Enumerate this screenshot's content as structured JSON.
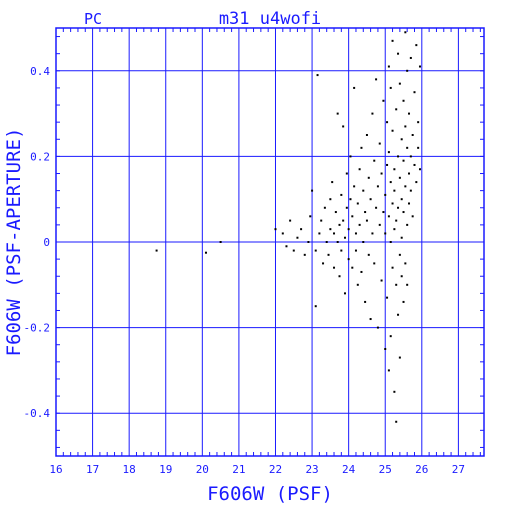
{
  "header": {
    "left_label": "PC",
    "title": "m31_u4wofi"
  },
  "colors": {
    "axis": "#1a1aff",
    "grid": "#1a1aff",
    "points": "#000000"
  },
  "chart_data": {
    "type": "scatter",
    "title": "m31_u4wofi",
    "subtitle": "PC",
    "xlabel": "F606W (PSF)",
    "ylabel": "F606W (PSF-APERTURE)",
    "xlim": [
      16,
      27.7
    ],
    "ylim": [
      -0.5,
      0.5
    ],
    "x_ticks": [
      16,
      17,
      18,
      19,
      20,
      21,
      22,
      23,
      24,
      25,
      26,
      27
    ],
    "y_ticks": [
      -0.4,
      -0.2,
      0,
      0.2,
      0.4
    ],
    "x_tick_labels": [
      "16",
      "17",
      "18",
      "19",
      "20",
      "21",
      "22",
      "23",
      "24",
      "25",
      "26",
      "27"
    ],
    "y_tick_labels": [
      "-0.4",
      "-0.2",
      "0",
      "0.2",
      "0.4"
    ],
    "grid": true,
    "points": [
      [
        18.75,
        -0.02
      ],
      [
        20.1,
        -0.025
      ],
      [
        20.5,
        0.0
      ],
      [
        22.0,
        0.03
      ],
      [
        22.2,
        0.02
      ],
      [
        22.3,
        -0.01
      ],
      [
        22.4,
        0.05
      ],
      [
        22.5,
        -0.02
      ],
      [
        22.6,
        0.01
      ],
      [
        22.7,
        0.03
      ],
      [
        22.8,
        -0.03
      ],
      [
        22.9,
        0.0
      ],
      [
        22.95,
        0.06
      ],
      [
        23.0,
        0.12
      ],
      [
        23.1,
        -0.02
      ],
      [
        23.1,
        -0.15
      ],
      [
        23.15,
        0.39
      ],
      [
        23.2,
        0.02
      ],
      [
        23.25,
        0.05
      ],
      [
        23.3,
        -0.05
      ],
      [
        23.35,
        0.08
      ],
      [
        23.4,
        0.0
      ],
      [
        23.45,
        -0.03
      ],
      [
        23.5,
        0.1
      ],
      [
        23.5,
        0.03
      ],
      [
        23.55,
        0.14
      ],
      [
        23.6,
        -0.06
      ],
      [
        23.6,
        0.02
      ],
      [
        23.65,
        0.07
      ],
      [
        23.7,
        0.0
      ],
      [
        23.7,
        0.3
      ],
      [
        23.75,
        -0.08
      ],
      [
        23.75,
        0.04
      ],
      [
        23.8,
        0.11
      ],
      [
        23.8,
        -0.02
      ],
      [
        23.85,
        0.05
      ],
      [
        23.85,
        0.27
      ],
      [
        23.9,
        0.01
      ],
      [
        23.9,
        -0.12
      ],
      [
        23.95,
        0.08
      ],
      [
        23.95,
        0.16
      ],
      [
        24.0,
        0.03
      ],
      [
        24.0,
        -0.04
      ],
      [
        24.05,
        0.2
      ],
      [
        24.05,
        0.1
      ],
      [
        24.1,
        -0.06
      ],
      [
        24.1,
        0.06
      ],
      [
        24.15,
        0.13
      ],
      [
        24.15,
        0.36
      ],
      [
        24.2,
        -0.02
      ],
      [
        24.2,
        0.02
      ],
      [
        24.25,
        0.09
      ],
      [
        24.25,
        -0.1
      ],
      [
        24.3,
        0.17
      ],
      [
        24.3,
        0.04
      ],
      [
        24.35,
        -0.07
      ],
      [
        24.35,
        0.22
      ],
      [
        24.4,
        0.0
      ],
      [
        24.4,
        0.12
      ],
      [
        24.45,
        0.07
      ],
      [
        24.45,
        -0.14
      ],
      [
        24.5,
        0.25
      ],
      [
        24.5,
        0.05
      ],
      [
        24.55,
        -0.03
      ],
      [
        24.55,
        0.15
      ],
      [
        24.6,
        0.1
      ],
      [
        24.6,
        -0.18
      ],
      [
        24.65,
        0.02
      ],
      [
        24.65,
        0.3
      ],
      [
        24.7,
        0.19
      ],
      [
        24.7,
        -0.05
      ],
      [
        24.75,
        0.08
      ],
      [
        24.75,
        0.38
      ],
      [
        24.8,
        0.13
      ],
      [
        24.8,
        -0.2
      ],
      [
        24.85,
        0.04
      ],
      [
        24.85,
        0.23
      ],
      [
        24.9,
        -0.09
      ],
      [
        24.9,
        0.16
      ],
      [
        24.95,
        0.07
      ],
      [
        24.95,
        0.33
      ],
      [
        25.0,
        -0.25
      ],
      [
        25.0,
        0.11
      ],
      [
        25.0,
        0.02
      ],
      [
        25.05,
        0.28
      ],
      [
        25.05,
        -0.13
      ],
      [
        25.05,
        0.18
      ],
      [
        25.1,
        0.06
      ],
      [
        25.1,
        -0.3
      ],
      [
        25.1,
        0.41
      ],
      [
        25.1,
        0.21
      ],
      [
        25.15,
        0.0
      ],
      [
        25.15,
        0.14
      ],
      [
        25.15,
        -0.22
      ],
      [
        25.15,
        0.36
      ],
      [
        25.2,
        0.09
      ],
      [
        25.2,
        -0.06
      ],
      [
        25.2,
        0.26
      ],
      [
        25.2,
        0.47
      ],
      [
        25.25,
        0.03
      ],
      [
        25.25,
        -0.35
      ],
      [
        25.25,
        0.17
      ],
      [
        25.25,
        0.12
      ],
      [
        25.3,
        -0.1
      ],
      [
        25.3,
        0.31
      ],
      [
        25.3,
        0.05
      ],
      [
        25.3,
        -0.42
      ],
      [
        25.35,
        0.2
      ],
      [
        25.35,
        0.08
      ],
      [
        25.35,
        -0.17
      ],
      [
        25.35,
        0.44
      ],
      [
        25.4,
        0.15
      ],
      [
        25.4,
        -0.03
      ],
      [
        25.4,
        0.37
      ],
      [
        25.4,
        -0.27
      ],
      [
        25.45,
        0.1
      ],
      [
        25.45,
        0.24
      ],
      [
        25.45,
        -0.08
      ],
      [
        25.45,
        0.01
      ],
      [
        25.5,
        0.19
      ],
      [
        25.5,
        -0.14
      ],
      [
        25.5,
        0.33
      ],
      [
        25.5,
        0.07
      ],
      [
        25.55,
        0.13
      ],
      [
        25.55,
        -0.05
      ],
      [
        25.55,
        0.27
      ],
      [
        25.55,
        0.49
      ],
      [
        25.6,
        0.04
      ],
      [
        25.6,
        0.22
      ],
      [
        25.6,
        -0.1
      ],
      [
        25.6,
        0.4
      ],
      [
        25.65,
        0.16
      ],
      [
        25.65,
        0.09
      ],
      [
        25.65,
        0.3
      ],
      [
        25.7,
        0.2
      ],
      [
        25.7,
        0.12
      ],
      [
        25.7,
        0.43
      ],
      [
        25.75,
        0.25
      ],
      [
        25.75,
        0.06
      ],
      [
        25.8,
        0.18
      ],
      [
        25.8,
        0.35
      ],
      [
        25.85,
        0.14
      ],
      [
        25.85,
        0.46
      ],
      [
        25.9,
        0.22
      ],
      [
        25.9,
        0.28
      ],
      [
        25.95,
        0.17
      ],
      [
        25.95,
        0.41
      ]
    ]
  }
}
